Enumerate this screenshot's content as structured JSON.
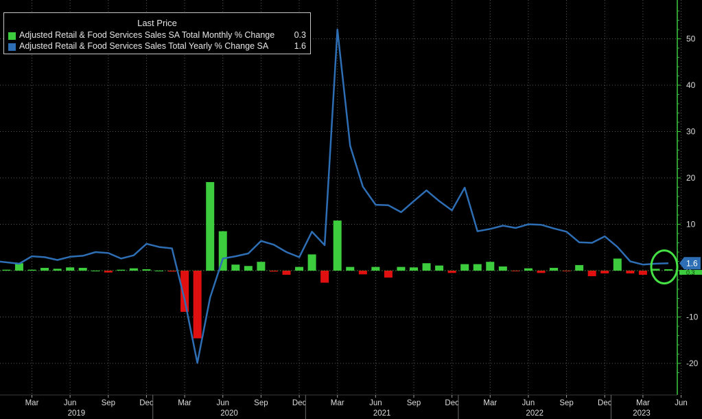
{
  "legend": {
    "title": "Last Price",
    "items": [
      {
        "label": "Adjusted Retail & Food Services Sales SA Total Monthly % Change",
        "value": "0.3",
        "color": "#3dcc3d"
      },
      {
        "label": "Adjusted Retail & Food Services Sales Total Yearly % Change SA",
        "value": "1.6",
        "color": "#2e6eb4"
      }
    ]
  },
  "chart_data": {
    "type": "bar+line",
    "ylim": [
      -24,
      58
    ],
    "yticks": [
      -20,
      -10,
      0,
      10,
      20,
      30,
      40,
      50
    ],
    "y_axis_side": "right",
    "grid": true,
    "legend_position": "top-left",
    "x_start": "2019-01",
    "months": [
      "2019-01",
      "2019-02",
      "2019-03",
      "2019-04",
      "2019-05",
      "2019-06",
      "2019-07",
      "2019-08",
      "2019-09",
      "2019-10",
      "2019-11",
      "2019-12",
      "2020-01",
      "2020-02",
      "2020-03",
      "2020-04",
      "2020-05",
      "2020-06",
      "2020-07",
      "2020-08",
      "2020-09",
      "2020-10",
      "2020-11",
      "2020-12",
      "2021-01",
      "2021-02",
      "2021-03",
      "2021-04",
      "2021-05",
      "2021-06",
      "2021-07",
      "2021-08",
      "2021-09",
      "2021-10",
      "2021-11",
      "2021-12",
      "2022-01",
      "2022-02",
      "2022-03",
      "2022-04",
      "2022-05",
      "2022-06",
      "2022-07",
      "2022-08",
      "2022-09",
      "2022-10",
      "2022-11",
      "2022-12",
      "2023-01",
      "2023-02",
      "2023-03",
      "2023-04",
      "2023-05"
    ],
    "month_tick_labels": [
      "Mar",
      "Jun",
      "Sep",
      "Dec",
      "Mar",
      "Jun",
      "Sep",
      "Dec",
      "Mar",
      "Jun",
      "Sep",
      "Dec",
      "Mar",
      "Jun",
      "Sep",
      "Dec",
      "Mar",
      "Jun"
    ],
    "month_tick_dates": [
      "2019-03",
      "2019-06",
      "2019-09",
      "2019-12",
      "2020-03",
      "2020-06",
      "2020-09",
      "2020-12",
      "2021-03",
      "2021-06",
      "2021-09",
      "2021-12",
      "2022-03",
      "2022-06",
      "2022-09",
      "2022-12",
      "2023-03",
      "2023-06"
    ],
    "year_labels": [
      "2019",
      "2020",
      "2021",
      "2022",
      "2023"
    ],
    "series": [
      {
        "name": "Adjusted Retail & Food Services Sales SA Total Monthly % Change",
        "kind": "bar",
        "positive_color": "#3dcc3d",
        "negative_color": "#e01010",
        "values": [
          0.2,
          1.6,
          0.2,
          0.6,
          0.4,
          0.7,
          0.6,
          0.0,
          -0.4,
          0.2,
          0.5,
          0.3,
          0.0,
          -0.2,
          -8.9,
          -14.6,
          19.1,
          8.5,
          1.3,
          1.0,
          1.9,
          -0.2,
          -0.9,
          0.8,
          3.5,
          -2.6,
          10.8,
          0.8,
          -0.8,
          0.8,
          -1.5,
          0.8,
          0.7,
          1.6,
          1.1,
          -0.5,
          1.4,
          1.4,
          1.9,
          0.9,
          -0.1,
          0.5,
          -0.5,
          0.6,
          -0.1,
          1.2,
          -1.2,
          -0.6,
          2.6,
          -0.6,
          -0.9,
          0.4,
          0.3
        ]
      },
      {
        "name": "Adjusted Retail & Food Services Sales Total Yearly % Change SA",
        "kind": "line",
        "color": "#2e6eb4",
        "values": [
          1.8,
          1.5,
          3.1,
          2.9,
          2.3,
          3.0,
          3.2,
          4.0,
          3.8,
          2.6,
          3.3,
          5.8,
          5.1,
          4.8,
          -6.3,
          -19.9,
          -5.8,
          2.6,
          3.1,
          3.7,
          6.4,
          5.6,
          4.0,
          2.9,
          8.4,
          5.5,
          52.0,
          26.9,
          18.1,
          14.2,
          14.1,
          12.6,
          15.0,
          17.3,
          15.0,
          13.0,
          17.9,
          8.5,
          9.0,
          9.7,
          9.2,
          10.0,
          9.9,
          9.1,
          8.4,
          6.1,
          6.0,
          7.4,
          5.1,
          2.0,
          1.3,
          1.5,
          1.6
        ]
      }
    ],
    "last_value_label": "1.6",
    "second_axis_label": "0.3",
    "highlight": "circle around latest values"
  }
}
